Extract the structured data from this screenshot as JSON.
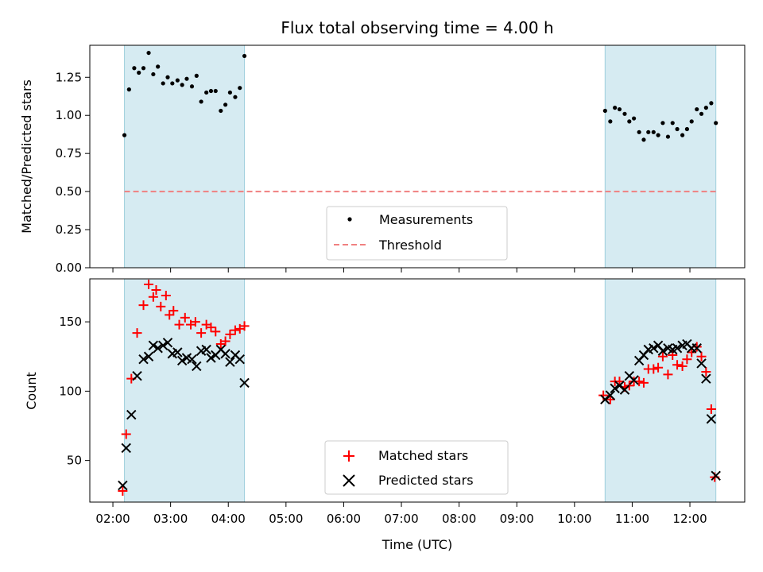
{
  "chart_data": [
    {
      "type": "scatter",
      "title": "Flux total observing time = 4.00 h",
      "ylabel": "Matched/Predicted stars",
      "ylim": [
        0,
        1.46
      ],
      "yticks": [
        "0.00",
        "0.25",
        "0.50",
        "0.75",
        "1.00",
        "1.25"
      ],
      "shaded_intervals_hours": [
        [
          2.2,
          4.28
        ],
        [
          10.53,
          12.45
        ]
      ],
      "legend_position": "lower center",
      "series": [
        {
          "name": "Measurements",
          "marker": "dot",
          "color": "#000000",
          "points": [
            [
              2.2,
              0.87
            ],
            [
              2.28,
              1.17
            ],
            [
              2.37,
              1.31
            ],
            [
              2.45,
              1.28
            ],
            [
              2.53,
              1.31
            ],
            [
              2.62,
              1.41
            ],
            [
              2.7,
              1.27
            ],
            [
              2.78,
              1.32
            ],
            [
              2.87,
              1.21
            ],
            [
              2.95,
              1.25
            ],
            [
              3.03,
              1.21
            ],
            [
              3.12,
              1.23
            ],
            [
              3.2,
              1.2
            ],
            [
              3.28,
              1.24
            ],
            [
              3.37,
              1.19
            ],
            [
              3.45,
              1.26
            ],
            [
              3.53,
              1.09
            ],
            [
              3.62,
              1.15
            ],
            [
              3.7,
              1.16
            ],
            [
              3.78,
              1.16
            ],
            [
              3.87,
              1.03
            ],
            [
              3.95,
              1.07
            ],
            [
              4.03,
              1.15
            ],
            [
              4.12,
              1.12
            ],
            [
              4.2,
              1.18
            ],
            [
              4.28,
              1.39
            ],
            [
              10.53,
              1.03
            ],
            [
              10.62,
              0.96
            ],
            [
              10.7,
              1.05
            ],
            [
              10.78,
              1.04
            ],
            [
              10.87,
              1.01
            ],
            [
              10.95,
              0.96
            ],
            [
              11.03,
              0.98
            ],
            [
              11.12,
              0.89
            ],
            [
              11.2,
              0.84
            ],
            [
              11.28,
              0.89
            ],
            [
              11.37,
              0.89
            ],
            [
              11.45,
              0.87
            ],
            [
              11.53,
              0.95
            ],
            [
              11.62,
              0.86
            ],
            [
              11.7,
              0.95
            ],
            [
              11.78,
              0.91
            ],
            [
              11.87,
              0.87
            ],
            [
              11.95,
              0.91
            ],
            [
              12.03,
              0.96
            ],
            [
              12.12,
              1.04
            ],
            [
              12.2,
              1.01
            ],
            [
              12.28,
              1.05
            ],
            [
              12.37,
              1.08
            ],
            [
              12.45,
              0.95
            ]
          ]
        },
        {
          "name": "Threshold",
          "style": "dashed",
          "color": "#f08080",
          "points": [
            [
              2.2,
              0.5
            ],
            [
              12.45,
              0.5
            ]
          ]
        }
      ]
    },
    {
      "type": "scatter",
      "xlabel": "Time (UTC)",
      "ylabel": "Count",
      "xlim": [
        1.6,
        12.95
      ],
      "ylim": [
        20,
        181
      ],
      "xticks": [
        "02:00",
        "03:00",
        "04:00",
        "05:00",
        "06:00",
        "07:00",
        "08:00",
        "09:00",
        "10:00",
        "11:00",
        "12:00"
      ],
      "yticks": [
        "50",
        "100",
        "150"
      ],
      "shaded_intervals_hours": [
        [
          2.2,
          4.28
        ],
        [
          10.53,
          12.45
        ]
      ],
      "legend_position": "lower center",
      "series": [
        {
          "name": "Matched stars",
          "marker": "plus",
          "color": "#ff0000",
          "points": [
            [
              2.17,
              28
            ],
            [
              2.23,
              69
            ],
            [
              2.32,
              109
            ],
            [
              2.42,
              142
            ],
            [
              2.53,
              162
            ],
            [
              2.62,
              177
            ],
            [
              2.7,
              168
            ],
            [
              2.75,
              173
            ],
            [
              2.83,
              161
            ],
            [
              2.92,
              169
            ],
            [
              2.98,
              155
            ],
            [
              3.05,
              158
            ],
            [
              3.15,
              148
            ],
            [
              3.25,
              153
            ],
            [
              3.35,
              148
            ],
            [
              3.43,
              150
            ],
            [
              3.53,
              142
            ],
            [
              3.62,
              148
            ],
            [
              3.7,
              146
            ],
            [
              3.78,
              143
            ],
            [
              3.87,
              134
            ],
            [
              3.95,
              136
            ],
            [
              4.03,
              141
            ],
            [
              4.12,
              144
            ],
            [
              4.2,
              145
            ],
            [
              4.28,
              147
            ],
            [
              10.5,
              97
            ],
            [
              10.62,
              94
            ],
            [
              10.7,
              107
            ],
            [
              10.78,
              107
            ],
            [
              10.87,
              103
            ],
            [
              10.95,
              104
            ],
            [
              11.03,
              107
            ],
            [
              11.12,
              107
            ],
            [
              11.2,
              106
            ],
            [
              11.28,
              116
            ],
            [
              11.37,
              116
            ],
            [
              11.45,
              117
            ],
            [
              11.53,
              125
            ],
            [
              11.62,
              112
            ],
            [
              11.7,
              126
            ],
            [
              11.78,
              119
            ],
            [
              11.87,
              118
            ],
            [
              11.95,
              123
            ],
            [
              12.03,
              128
            ],
            [
              12.12,
              132
            ],
            [
              12.2,
              125
            ],
            [
              12.28,
              114
            ],
            [
              12.37,
              87
            ],
            [
              12.43,
              38
            ]
          ]
        },
        {
          "name": "Predicted stars",
          "marker": "x",
          "color": "#000000",
          "points": [
            [
              2.17,
              32
            ],
            [
              2.23,
              59
            ],
            [
              2.32,
              83
            ],
            [
              2.42,
              111
            ],
            [
              2.53,
              123
            ],
            [
              2.62,
              125
            ],
            [
              2.7,
              133
            ],
            [
              2.78,
              131
            ],
            [
              2.87,
              133
            ],
            [
              2.95,
              135
            ],
            [
              3.03,
              127
            ],
            [
              3.12,
              128
            ],
            [
              3.2,
              122
            ],
            [
              3.28,
              124
            ],
            [
              3.37,
              123
            ],
            [
              3.45,
              118
            ],
            [
              3.53,
              129
            ],
            [
              3.62,
              130
            ],
            [
              3.7,
              124
            ],
            [
              3.78,
              126
            ],
            [
              3.87,
              130
            ],
            [
              3.95,
              127
            ],
            [
              4.03,
              121
            ],
            [
              4.12,
              126
            ],
            [
              4.2,
              123
            ],
            [
              4.28,
              106
            ],
            [
              10.53,
              94
            ],
            [
              10.62,
              97
            ],
            [
              10.7,
              102
            ],
            [
              10.78,
              104
            ],
            [
              10.87,
              101
            ],
            [
              10.95,
              111
            ],
            [
              11.03,
              108
            ],
            [
              11.12,
              122
            ],
            [
              11.2,
              126
            ],
            [
              11.28,
              130
            ],
            [
              11.37,
              131
            ],
            [
              11.45,
              133
            ],
            [
              11.53,
              129
            ],
            [
              11.62,
              131
            ],
            [
              11.7,
              130
            ],
            [
              11.78,
              131
            ],
            [
              11.87,
              133
            ],
            [
              11.95,
              134
            ],
            [
              12.03,
              131
            ],
            [
              12.12,
              131
            ],
            [
              12.2,
              120
            ],
            [
              12.28,
              109
            ],
            [
              12.37,
              80
            ],
            [
              12.45,
              39
            ]
          ]
        }
      ]
    }
  ]
}
